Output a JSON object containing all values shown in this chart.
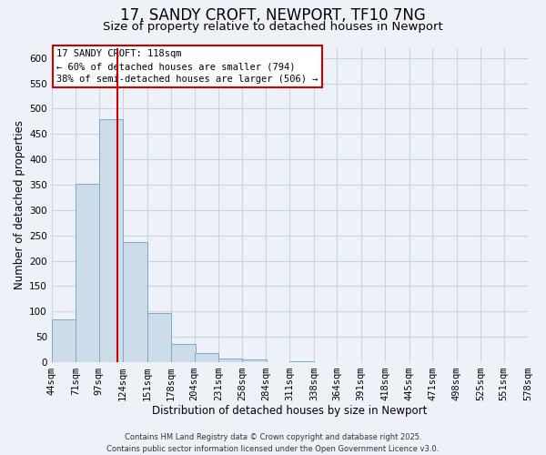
{
  "title": "17, SANDY CROFT, NEWPORT, TF10 7NG",
  "subtitle": "Size of property relative to detached houses in Newport",
  "xlabel": "Distribution of detached houses by size in Newport",
  "ylabel": "Number of detached properties",
  "bin_edges": [
    44,
    71,
    97,
    124,
    151,
    178,
    204,
    231,
    258,
    284,
    311,
    338,
    364,
    391,
    418,
    445,
    471,
    498,
    525,
    551,
    578
  ],
  "bar_heights": [
    85,
    352,
    480,
    237,
    97,
    35,
    18,
    7,
    5,
    0,
    2,
    0,
    0,
    0,
    0,
    0,
    0,
    0,
    0,
    0
  ],
  "bar_color": "#ccdce8",
  "bar_edgecolor": "#7aaac8",
  "bar_linewidth": 0.7,
  "vline_x": 118,
  "vline_color": "#cc0000",
  "ylim": [
    0,
    620
  ],
  "yticks": [
    0,
    50,
    100,
    150,
    200,
    250,
    300,
    350,
    400,
    450,
    500,
    550,
    600
  ],
  "grid_color": "#c8d4e4",
  "background_color": "#eef2f8",
  "annotation_title": "17 SANDY CROFT: 118sqm",
  "annotation_line1": "← 60% of detached houses are smaller (794)",
  "annotation_line2": "38% of semi-detached houses are larger (506) →",
  "annotation_box_facecolor": "#ffffff",
  "annotation_box_edgecolor": "#cc0000",
  "footer_line1": "Contains HM Land Registry data © Crown copyright and database right 2025.",
  "footer_line2": "Contains public sector information licensed under the Open Government Licence v3.0.",
  "title_fontsize": 12,
  "subtitle_fontsize": 9.5,
  "axis_label_fontsize": 8.5,
  "tick_fontsize": 7.5,
  "annotation_fontsize": 7.5,
  "footer_fontsize": 6
}
